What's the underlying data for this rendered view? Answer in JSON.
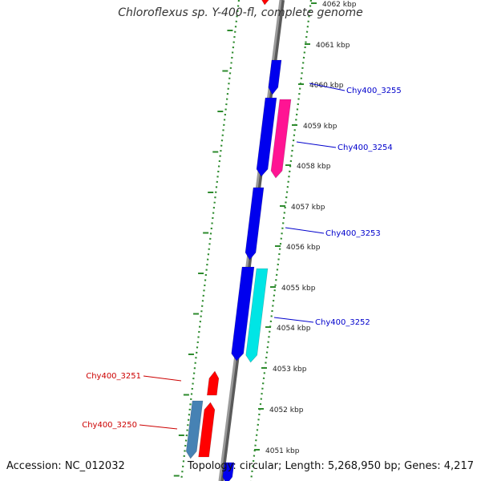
{
  "title": "Chloroflexus sp. Y-400-fl, complete genome",
  "footer": {
    "accession": "Accession: NC_012032",
    "summary": "Topology: circular; Length: 5,268,950 bp; Genes: 4,217"
  },
  "colors": {
    "backbone": "#8a8a8a",
    "ruler": "#2e8b2e",
    "gene_blue": "#0000ee",
    "gene_red": "#ff0000",
    "gene_magenta": "#ff1493",
    "gene_cyan": "#00e5e5",
    "gene_steelblue": "#4682b4",
    "label_blue": "#0000cc",
    "label_red": "#cc0000"
  },
  "ruler_ticks": [
    "4062 kbp",
    "4061 kbp",
    "4060 kbp",
    "4059 kbp",
    "4058 kbp",
    "4057 kbp",
    "4056 kbp",
    "4055 kbp",
    "4054 kbp",
    "4053 kbp",
    "4052 kbp",
    "4051 kbp"
  ],
  "gene_labels": [
    {
      "text": "Chy400_3255",
      "color": "label_blue"
    },
    {
      "text": "Chy400_3254",
      "color": "label_blue"
    },
    {
      "text": "Chy400_3253",
      "color": "label_blue"
    },
    {
      "text": "Chy400_3252",
      "color": "label_blue"
    },
    {
      "text": "Chy400_3251",
      "color": "label_red"
    },
    {
      "text": "Chy400_3250",
      "color": "label_red"
    }
  ]
}
